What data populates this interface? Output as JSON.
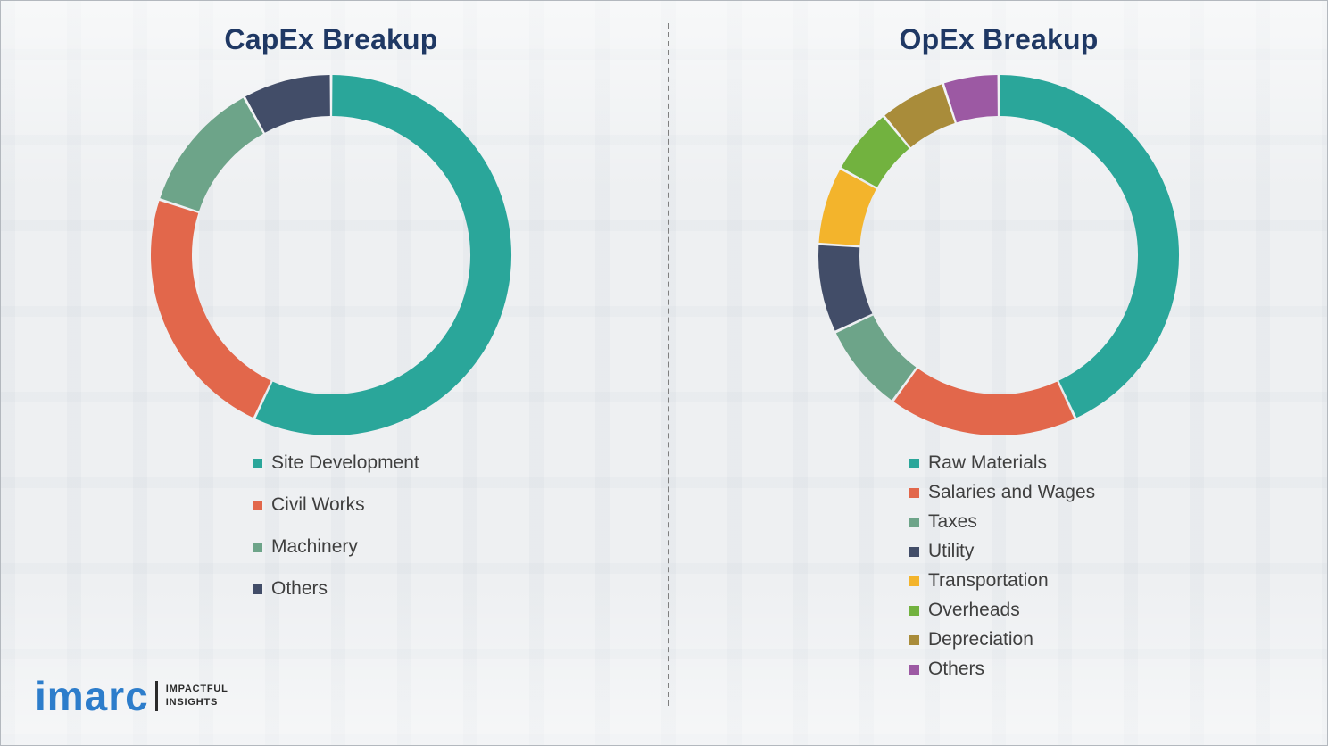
{
  "chart_data": [
    {
      "type": "donut",
      "title": "CapEx Breakup",
      "labels": [
        "Site Development",
        "Civil Works",
        "Machinery",
        "Others"
      ],
      "values": [
        57,
        23,
        12,
        8
      ],
      "colors": [
        "#2aa69a",
        "#e2674b",
        "#6da489",
        "#424d68"
      ],
      "start_angle_deg": -90,
      "direction": "clockwise",
      "legend_position": "below-chart"
    },
    {
      "type": "donut",
      "title": "OpEx Breakup",
      "labels": [
        "Raw Materials",
        "Salaries and Wages",
        "Taxes",
        "Utility",
        "Transportation",
        "Overheads",
        "Depreciation",
        "Others"
      ],
      "values": [
        43,
        17,
        8,
        8,
        7,
        6,
        6,
        5
      ],
      "colors": [
        "#2aa69a",
        "#e2674b",
        "#6da489",
        "#424d68",
        "#f3b42c",
        "#72b23f",
        "#a98c3a",
        "#9c59a3"
      ],
      "start_angle_deg": -90,
      "direction": "clockwise",
      "legend_position": "below-chart"
    }
  ],
  "logo": {
    "brand": "imarc",
    "tagline_line1": "IMPACTFUL",
    "tagline_line2": "INSIGHTS"
  },
  "divider": {
    "style": "dashed-vertical"
  },
  "theme": {
    "title_color": "#1f3864",
    "legend_text_color": "#3f3f3f",
    "background": "#eef0f2",
    "logo_blue": "#2d7dcb",
    "divider_gray": "#7f7f7f"
  }
}
